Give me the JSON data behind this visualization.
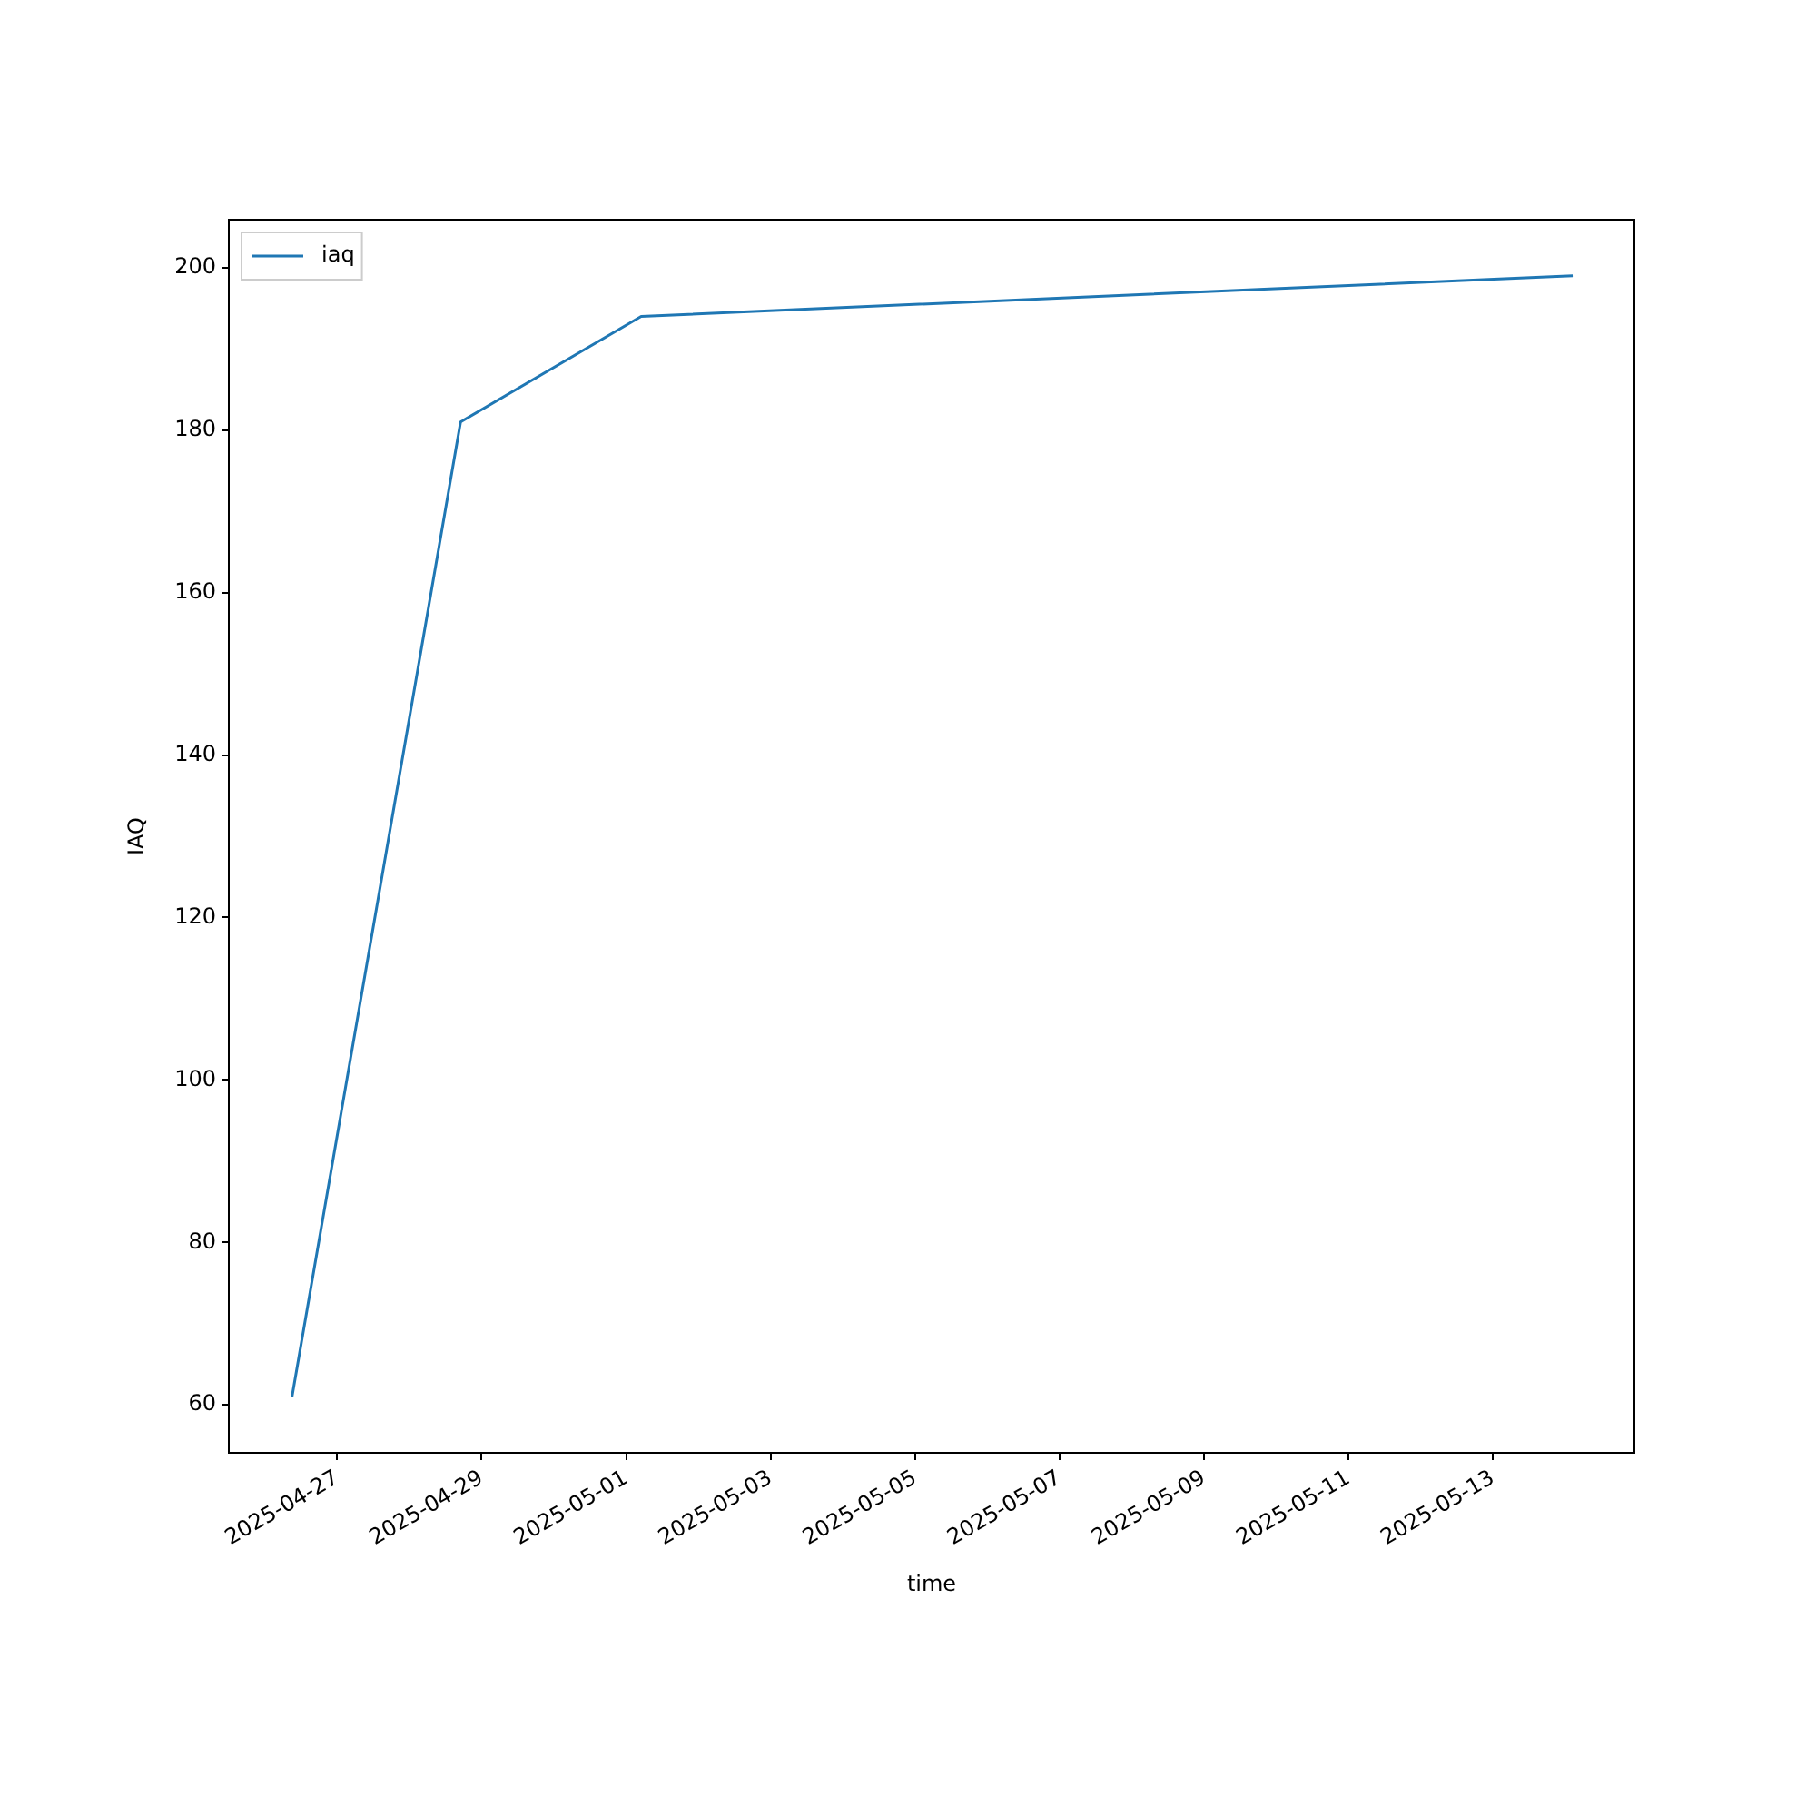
{
  "chart_data": {
    "type": "line",
    "xlabel": "time",
    "ylabel": "IAQ",
    "series": [
      {
        "name": "iaq",
        "color": "#1f77b4",
        "x": [
          "2025-04-26T09:00",
          "2025-04-28T17:00",
          "2025-05-01T05:00",
          "2025-05-14T02:30"
        ],
        "values": [
          61,
          181,
          194,
          199
        ]
      }
    ],
    "xlim": [
      "2025-04-25T12:00",
      "2025-05-14T23:00"
    ],
    "xticks": [
      "2025-04-27",
      "2025-04-29",
      "2025-05-01",
      "2025-05-03",
      "2025-05-05",
      "2025-05-07",
      "2025-05-09",
      "2025-05-11",
      "2025-05-13"
    ],
    "ylim": [
      54.1,
      205.9
    ],
    "yticks": [
      60,
      80,
      100,
      120,
      140,
      160,
      180,
      200
    ],
    "grid": false,
    "legend": "top left",
    "marker": "none",
    "line_style": "solid"
  }
}
